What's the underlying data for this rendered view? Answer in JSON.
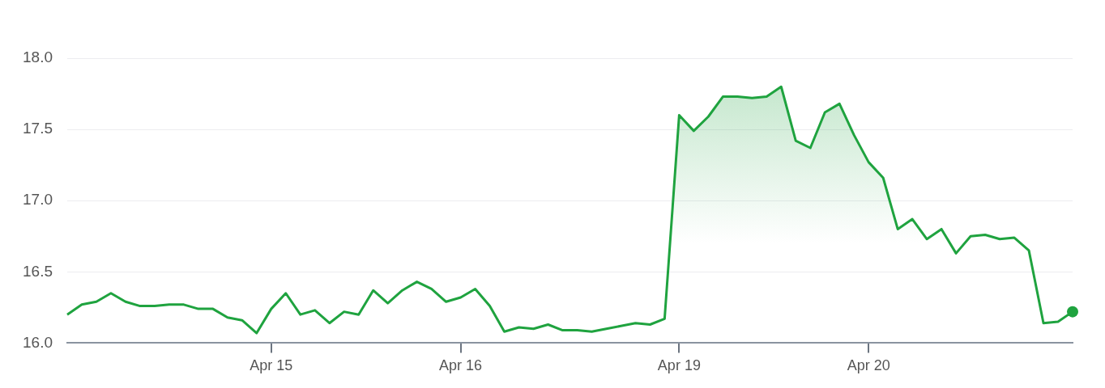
{
  "chart_data": {
    "type": "area",
    "categories": [
      null,
      null,
      null,
      null,
      null,
      null,
      null,
      null,
      null,
      null,
      null,
      null,
      null,
      null,
      "Apr 15",
      null,
      null,
      null,
      null,
      null,
      null,
      null,
      null,
      null,
      null,
      null,
      null,
      "Apr 16",
      null,
      null,
      null,
      null,
      null,
      null,
      null,
      null,
      null,
      null,
      null,
      null,
      null,
      null,
      "Apr 19",
      null,
      null,
      null,
      null,
      null,
      null,
      null,
      null,
      null,
      null,
      null,
      null,
      "Apr 20",
      null,
      null,
      null,
      null,
      null,
      null,
      null,
      null,
      null,
      null,
      null,
      null,
      null,
      null
    ],
    "series": [
      {
        "color": "#1fa33f",
        "values": [
          16.2,
          16.27,
          16.29,
          16.35,
          16.29,
          16.26,
          16.26,
          16.27,
          16.27,
          16.24,
          16.24,
          16.18,
          16.16,
          16.07,
          16.24,
          16.35,
          16.2,
          16.23,
          16.14,
          16.22,
          16.2,
          16.37,
          16.28,
          16.37,
          16.43,
          16.38,
          16.29,
          16.32,
          16.38,
          16.26,
          16.08,
          16.11,
          16.1,
          16.13,
          16.09,
          16.09,
          16.08,
          16.1,
          16.12,
          16.14,
          16.13,
          16.17,
          17.6,
          17.49,
          17.59,
          17.73,
          17.73,
          17.72,
          17.73,
          17.8,
          17.42,
          17.37,
          17.62,
          17.68,
          17.46,
          17.27,
          17.16,
          16.8,
          16.87,
          16.73,
          16.8,
          16.63,
          16.75,
          16.76,
          16.73,
          16.74,
          16.65,
          16.14,
          16.15,
          16.22
        ]
      }
    ],
    "ylim": [
      16.0,
      18.0
    ],
    "yticks": [
      {
        "value": 16.0,
        "label": "16.0"
      },
      {
        "value": 16.5,
        "label": "16.5"
      },
      {
        "value": 17.0,
        "label": "17.0"
      },
      {
        "value": 17.5,
        "label": "17.5"
      },
      {
        "value": 18.0,
        "label": "18.0"
      }
    ],
    "grid": "y",
    "legend": false
  }
}
